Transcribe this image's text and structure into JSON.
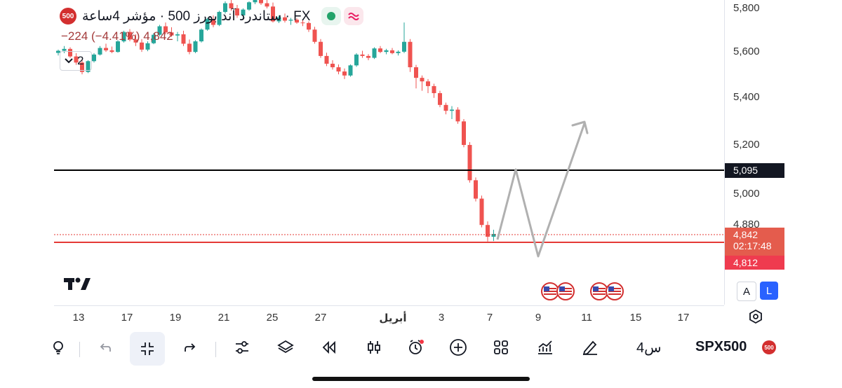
{
  "header": {
    "symbol_badge": "500",
    "title": "ستاندرد آند بورز 500 · مؤشر 4ساعة · FX",
    "change": "−224 (−4.41%) 4,842",
    "collapse_count": "2"
  },
  "price_axis": {
    "ticks": [
      "5,800",
      "5,600",
      "5,400",
      "5,200",
      "5,000",
      "4,880"
    ],
    "line_black_label": "5,095",
    "current_price_label": "4,842",
    "countdown_label": "02:17:48",
    "line_red_label": "4,812"
  },
  "time_axis": {
    "ticks": [
      "13",
      "17",
      "19",
      "21",
      "25",
      "27",
      "أبريل",
      "3",
      "7",
      "9",
      "11",
      "15",
      "17"
    ]
  },
  "scale_buttons": {
    "auto": "A",
    "log": "L"
  },
  "toolbar": {
    "interval": "4س",
    "symbol": "SPX500",
    "symbol_badge": "500"
  },
  "colors": {
    "up": "#26a69a",
    "down": "#ef5350",
    "horizontal_black": "#000000",
    "horizontal_red": "#e53935",
    "projection_arrow": "#b0b0b0",
    "accent_blue": "#2962ff"
  },
  "chart_data": {
    "type": "candlestick",
    "ylim": [
      4720,
      5860
    ],
    "hlines": [
      5095,
      4812
    ],
    "current_price": 4842,
    "series": [
      {
        "o": 5611,
        "h": 5625,
        "l": 5600,
        "c": 5620
      },
      {
        "o": 5620,
        "h": 5640,
        "l": 5610,
        "c": 5628
      },
      {
        "o": 5628,
        "h": 5635,
        "l": 5590,
        "c": 5596
      },
      {
        "o": 5596,
        "h": 5610,
        "l": 5560,
        "c": 5570
      },
      {
        "o": 5570,
        "h": 5585,
        "l": 5520,
        "c": 5530
      },
      {
        "o": 5530,
        "h": 5580,
        "l": 5525,
        "c": 5576
      },
      {
        "o": 5576,
        "h": 5610,
        "l": 5570,
        "c": 5604
      },
      {
        "o": 5604,
        "h": 5640,
        "l": 5600,
        "c": 5632
      },
      {
        "o": 5632,
        "h": 5650,
        "l": 5615,
        "c": 5622
      },
      {
        "o": 5622,
        "h": 5638,
        "l": 5610,
        "c": 5615
      },
      {
        "o": 5615,
        "h": 5665,
        "l": 5612,
        "c": 5660
      },
      {
        "o": 5660,
        "h": 5705,
        "l": 5655,
        "c": 5700
      },
      {
        "o": 5700,
        "h": 5712,
        "l": 5660,
        "c": 5668
      },
      {
        "o": 5668,
        "h": 5690,
        "l": 5640,
        "c": 5655
      },
      {
        "o": 5655,
        "h": 5670,
        "l": 5615,
        "c": 5625
      },
      {
        "o": 5625,
        "h": 5660,
        "l": 5618,
        "c": 5652
      },
      {
        "o": 5652,
        "h": 5695,
        "l": 5648,
        "c": 5688
      },
      {
        "o": 5688,
        "h": 5730,
        "l": 5682,
        "c": 5724
      },
      {
        "o": 5724,
        "h": 5740,
        "l": 5690,
        "c": 5698
      },
      {
        "o": 5698,
        "h": 5720,
        "l": 5680,
        "c": 5685
      },
      {
        "o": 5685,
        "h": 5700,
        "l": 5660,
        "c": 5690
      },
      {
        "o": 5690,
        "h": 5705,
        "l": 5640,
        "c": 5650
      },
      {
        "o": 5650,
        "h": 5668,
        "l": 5605,
        "c": 5615
      },
      {
        "o": 5615,
        "h": 5665,
        "l": 5610,
        "c": 5660
      },
      {
        "o": 5660,
        "h": 5715,
        "l": 5655,
        "c": 5710
      },
      {
        "o": 5710,
        "h": 5760,
        "l": 5705,
        "c": 5755
      },
      {
        "o": 5755,
        "h": 5770,
        "l": 5720,
        "c": 5730
      },
      {
        "o": 5730,
        "h": 5790,
        "l": 5725,
        "c": 5785
      },
      {
        "o": 5785,
        "h": 5830,
        "l": 5778,
        "c": 5822
      },
      {
        "o": 5822,
        "h": 5840,
        "l": 5790,
        "c": 5800
      },
      {
        "o": 5800,
        "h": 5815,
        "l": 5760,
        "c": 5770
      },
      {
        "o": 5770,
        "h": 5800,
        "l": 5760,
        "c": 5795
      },
      {
        "o": 5795,
        "h": 5830,
        "l": 5790,
        "c": 5826
      },
      {
        "o": 5826,
        "h": 5850,
        "l": 5818,
        "c": 5840
      },
      {
        "o": 5840,
        "h": 5850,
        "l": 5815,
        "c": 5822
      },
      {
        "o": 5822,
        "h": 5845,
        "l": 5800,
        "c": 5808
      },
      {
        "o": 5808,
        "h": 5825,
        "l": 5740,
        "c": 5745
      },
      {
        "o": 5745,
        "h": 5770,
        "l": 5738,
        "c": 5762
      },
      {
        "o": 5762,
        "h": 5778,
        "l": 5740,
        "c": 5748
      },
      {
        "o": 5748,
        "h": 5760,
        "l": 5730,
        "c": 5752
      },
      {
        "o": 5752,
        "h": 5758,
        "l": 5735,
        "c": 5740
      },
      {
        "o": 5740,
        "h": 5750,
        "l": 5725,
        "c": 5738
      },
      {
        "o": 5738,
        "h": 5745,
        "l": 5700,
        "c": 5710
      },
      {
        "o": 5710,
        "h": 5722,
        "l": 5650,
        "c": 5658
      },
      {
        "o": 5658,
        "h": 5670,
        "l": 5590,
        "c": 5598
      },
      {
        "o": 5598,
        "h": 5612,
        "l": 5555,
        "c": 5565
      },
      {
        "o": 5565,
        "h": 5580,
        "l": 5540,
        "c": 5550
      },
      {
        "o": 5550,
        "h": 5562,
        "l": 5520,
        "c": 5532
      },
      {
        "o": 5532,
        "h": 5545,
        "l": 5500,
        "c": 5515
      },
      {
        "o": 5515,
        "h": 5562,
        "l": 5510,
        "c": 5558
      },
      {
        "o": 5558,
        "h": 5610,
        "l": 5552,
        "c": 5604
      },
      {
        "o": 5604,
        "h": 5620,
        "l": 5590,
        "c": 5598
      },
      {
        "o": 5598,
        "h": 5606,
        "l": 5580,
        "c": 5590
      },
      {
        "o": 5590,
        "h": 5635,
        "l": 5585,
        "c": 5630
      },
      {
        "o": 5630,
        "h": 5640,
        "l": 5610,
        "c": 5615
      },
      {
        "o": 5615,
        "h": 5628,
        "l": 5605,
        "c": 5622
      },
      {
        "o": 5622,
        "h": 5632,
        "l": 5605,
        "c": 5610
      },
      {
        "o": 5610,
        "h": 5622,
        "l": 5600,
        "c": 5616
      },
      {
        "o": 5616,
        "h": 5740,
        "l": 5610,
        "c": 5658
      },
      {
        "o": 5658,
        "h": 5670,
        "l": 5530,
        "c": 5550
      },
      {
        "o": 5550,
        "h": 5560,
        "l": 5460,
        "c": 5505
      },
      {
        "o": 5505,
        "h": 5515,
        "l": 5450,
        "c": 5490
      },
      {
        "o": 5490,
        "h": 5500,
        "l": 5440,
        "c": 5470
      },
      {
        "o": 5470,
        "h": 5480,
        "l": 5420,
        "c": 5440
      },
      {
        "o": 5440,
        "h": 5450,
        "l": 5380,
        "c": 5390
      },
      {
        "o": 5390,
        "h": 5400,
        "l": 5350,
        "c": 5365
      },
      {
        "o": 5365,
        "h": 5385,
        "l": 5330,
        "c": 5370
      },
      {
        "o": 5370,
        "h": 5380,
        "l": 5310,
        "c": 5320
      },
      {
        "o": 5320,
        "h": 5330,
        "l": 5210,
        "c": 5220
      },
      {
        "o": 5220,
        "h": 5232,
        "l": 5060,
        "c": 5070
      },
      {
        "o": 5070,
        "h": 5082,
        "l": 4980,
        "c": 4992
      },
      {
        "o": 4992,
        "h": 5005,
        "l": 4870,
        "c": 4880
      },
      {
        "o": 4880,
        "h": 4895,
        "l": 4810,
        "c": 4830
      },
      {
        "o": 4830,
        "h": 4860,
        "l": 4812,
        "c": 4842
      }
    ]
  }
}
